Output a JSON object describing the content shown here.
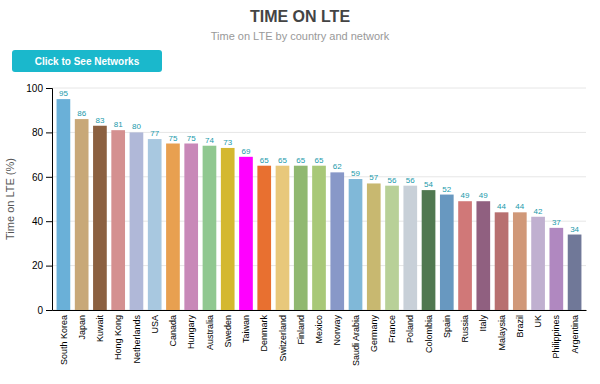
{
  "chart_data": {
    "type": "bar",
    "title": "TIME ON LTE",
    "subtitle": "Time on LTE by country and network",
    "y_label": "Time on LTE (%)",
    "annotations": [
      "Click to See Networks"
    ],
    "categories": [
      "South Korea",
      "Japan",
      "Kuwait",
      "Hong Kong",
      "Netherlands",
      "USA",
      "Canada",
      "Hungary",
      "Australia",
      "Sweden",
      "Taiwan",
      "Denmark",
      "Switzerland",
      "Finland",
      "Mexico",
      "Norway",
      "Saudi Arabia",
      "Germany",
      "France",
      "Poland",
      "Colombia",
      "Spain",
      "Russia",
      "Italy",
      "Malaysia",
      "Brazil",
      "UK",
      "Philippines",
      "Argentina"
    ],
    "values": [
      95,
      86,
      83,
      81,
      80,
      77,
      75,
      75,
      74,
      73,
      69,
      65,
      65,
      65,
      65,
      62,
      59,
      57,
      56,
      56,
      54,
      52,
      49,
      49,
      44,
      44,
      42,
      37,
      34
    ],
    "colors": [
      "#6ab0d8",
      "#c8a878",
      "#8b6040",
      "#d49090",
      "#b0b8d8",
      "#a8c8e0",
      "#e8a050",
      "#c888b8",
      "#90c890",
      "#d4b830",
      "#ff00ff",
      "#e87030",
      "#e8c87b",
      "#90b870",
      "#a8c878",
      "#8898c8",
      "#80b8d8",
      "#c8b870",
      "#b8d098",
      "#c8d0d8",
      "#507850",
      "#6898c0",
      "#d07878",
      "#906080",
      "#b87070",
      "#d09878",
      "#c0b0d0",
      "#b088c0",
      "#707898"
    ],
    "ylim": [
      0,
      100
    ],
    "yticks": [
      0,
      20,
      40,
      60,
      80,
      100
    ],
    "grid": true,
    "data_labels": true
  }
}
